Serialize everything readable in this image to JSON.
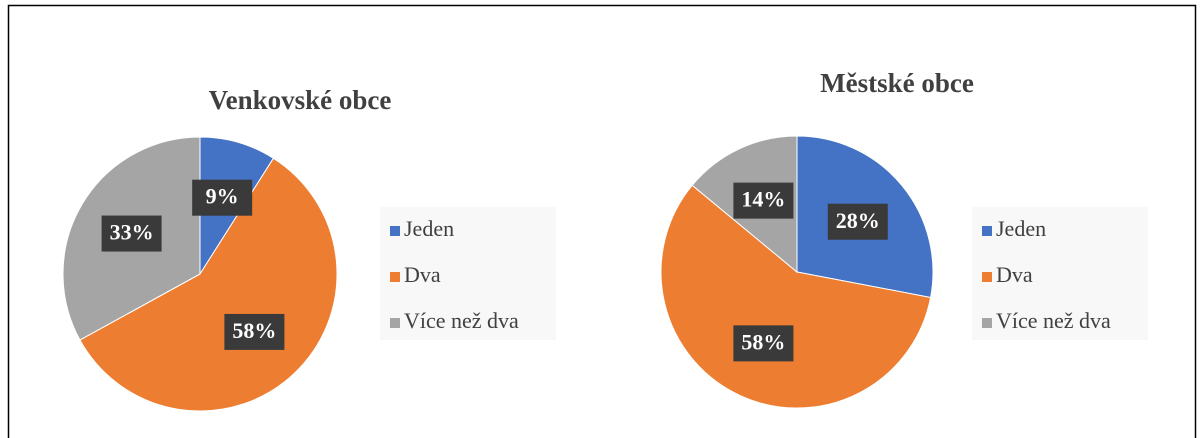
{
  "chart_data": [
    {
      "type": "pie",
      "title": "Venkovské obce",
      "categories": [
        "Jeden",
        "Dva",
        "Více než dva"
      ],
      "values": [
        9,
        58,
        33
      ],
      "value_labels": [
        "9%",
        "58%",
        "33%"
      ],
      "colors": [
        "#4472c4",
        "#ed7d31",
        "#a5a5a5"
      ],
      "legend": "right"
    },
    {
      "type": "pie",
      "title": "Městské obce",
      "categories": [
        "Jeden",
        "Dva",
        "Více než dva"
      ],
      "values": [
        28,
        58,
        14
      ],
      "value_labels": [
        "28%",
        "58%",
        "14%"
      ],
      "colors": [
        "#4472c4",
        "#ed7d31",
        "#a5a5a5"
      ],
      "legend": "right"
    }
  ]
}
